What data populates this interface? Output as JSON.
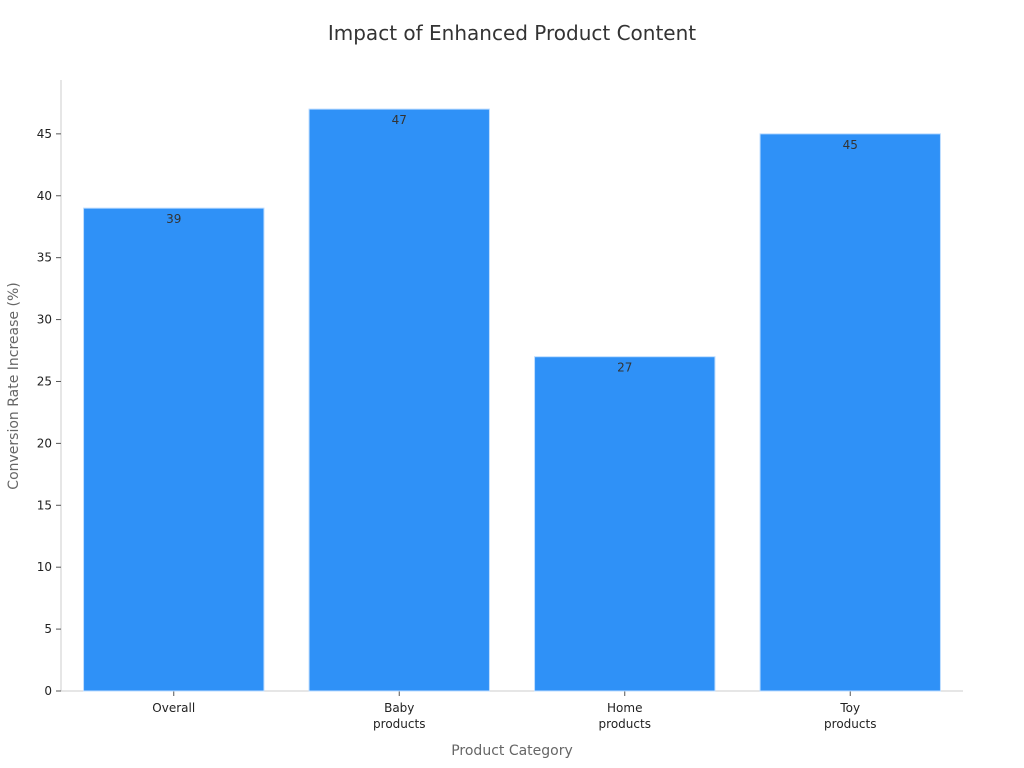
{
  "chart_data": {
    "type": "bar",
    "title": "Impact of Enhanced Product Content",
    "xlabel": "Product Category",
    "ylabel": "Conversion Rate Increase (%)",
    "categories": [
      [
        "Overall"
      ],
      [
        "Baby",
        "products"
      ],
      [
        "Home",
        "products"
      ],
      [
        "Toy",
        "products"
      ]
    ],
    "values": [
      39,
      47,
      27,
      45
    ],
    "ylim": [
      0,
      49.35
    ],
    "yticks": [
      0,
      5,
      10,
      15,
      20,
      25,
      30,
      35,
      40,
      45
    ],
    "grid": false,
    "legend": "none",
    "colors": {
      "bar": "#2f91f7",
      "bar_edge": "#bcdcff",
      "axis": "#cccccc"
    }
  }
}
